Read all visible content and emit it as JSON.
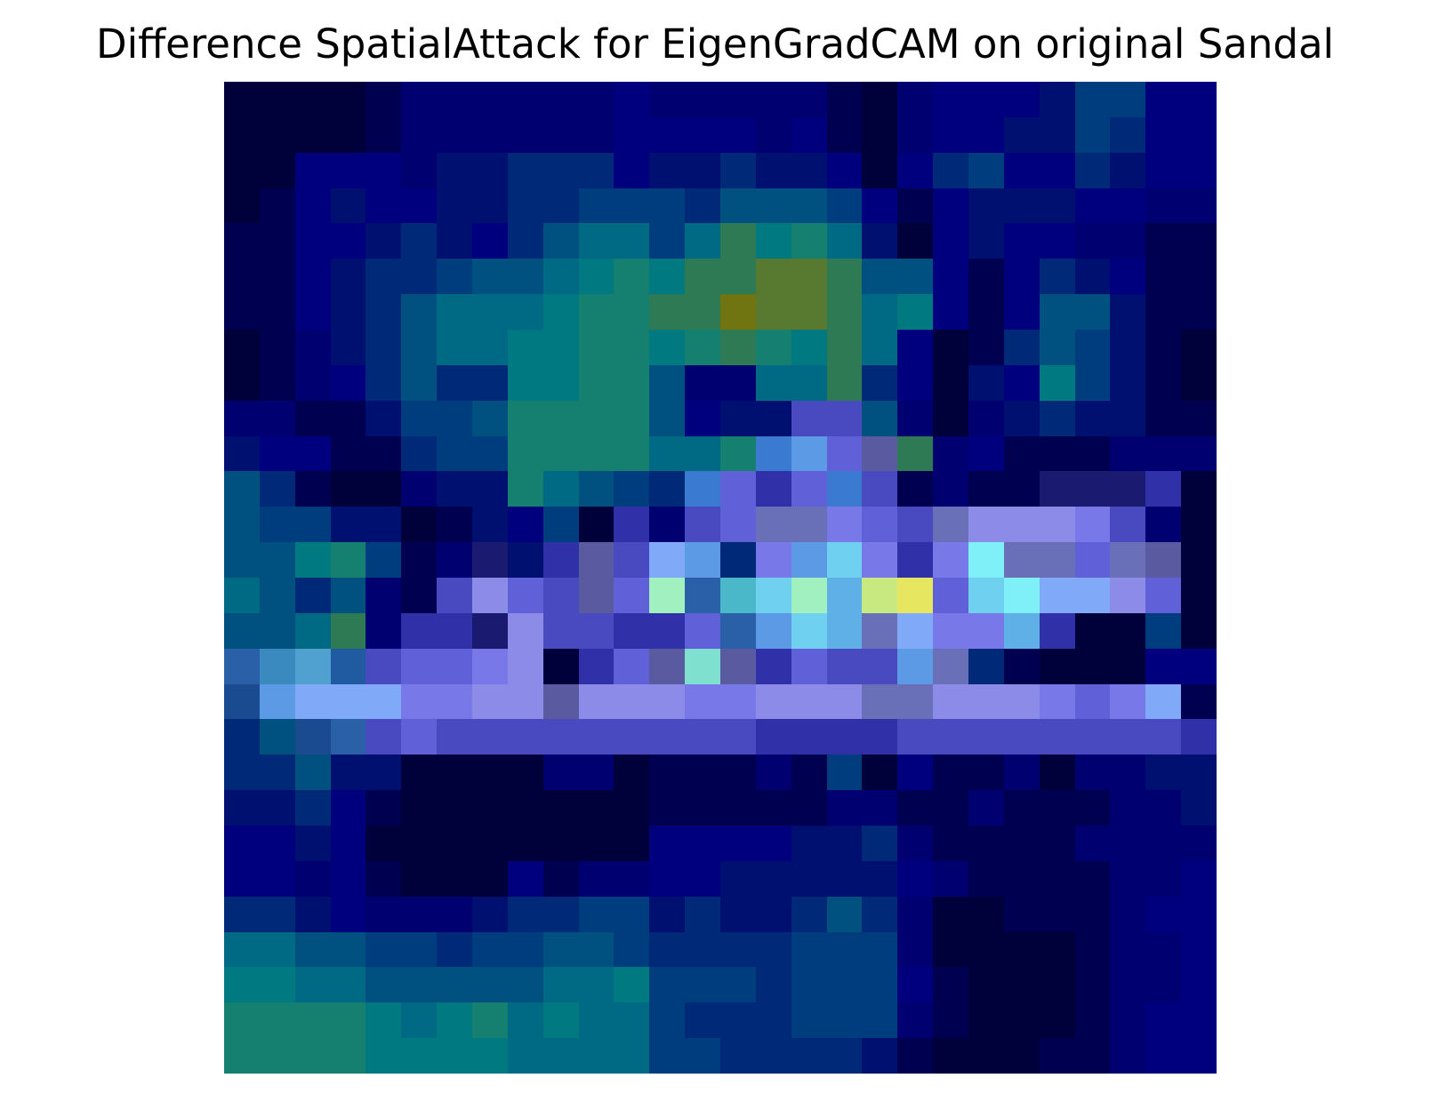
{
  "title": "Difference SpatialAttack for EigenGradCAM on original Sandal",
  "image": {
    "rows": 28,
    "cols": 28,
    "colormap": "jet-blend over dark-blue image",
    "palette": {
      "a": "#00003a",
      "b": "#000050",
      "c": "#000070",
      "d": "#00007e",
      "e": "#001070",
      "f": "#002a78",
      "g": "#003d7f",
      "h": "#005080",
      "i": "#006a85",
      "j": "#007a80",
      "k": "#158070",
      "l": "#2d7a55",
      "m": "#587a30",
      "n": "#707512",
      "o": "#1a1a70",
      "p": "#3030a8",
      "q": "#4a4ac0",
      "r": "#6060d8",
      "s": "#7878e8",
      "t": "#8c8ce8",
      "u": "#5a5aa0",
      "v": "#6a70b8",
      "w": "#3a7ad0",
      "x": "#5c9ae6",
      "y": "#80aaf8",
      "z": "#70d0f0",
      "A": "#80f0f8",
      "B": "#a0f0c0",
      "C": "#c8e880",
      "D": "#e6e660",
      "E": "#4ab8c8",
      "F": "#60b0e8",
      "G": "#2a60a8",
      "H": "#3a8abf",
      "I": "#50a0d0",
      "J": "#80e0d0",
      "K": "#205aa0",
      "L": "#1a4a90"
    },
    "grid": [
      "aaaabccccccdcccccbacdddeggdd",
      "aaaabccccccddddcdbacddeegfdd",
      "aadddceefffdeefeedadfgddfedd",
      "abdeddeeffgggfhhhgdbdeeeddcc",
      "bbddefedfhiigiljkieadeddccbb",
      "bbdeffghhijkjllmmlhhdbdfedbb",
      "bbdefhiiijkkllnmmlijdbdhhebb",
      "abcefhiijjkkjklkjlidabfhgeba",
      "abcdfhffjjkkhcciilfdaedjgeba",
      "ccbbegghkkkkhdeeqqhcacefeebb",
      "eddbbfggkkkkiikwxrulcdbbbccc",
      "hfbaaceekihgfwrprwqbcbbooopa",
      "hggeeabedgapcqrvvsrqvtttsqca",
      "hhjkgbcoepuqyxfsxzspsAvvrvua",
      "ihfhcbqtrqurBGEzBFCDrzAyytra",
      "hhilcppotqqpprGxzFvyssFpaaga",
      "GHIKqrrstapruJuprqqxvfbaaadd",
      "LxyyyssttutttsstttvvtttsrsyQ",
      "fhLGqrqqqqqqqqqppppqqqqqqqqp",
      "ffheeaaaaccabbbcbgadbbcaccee",
      "eefdbaaaaaaabbbbbccbbcbbbcce",
      "ddedaaaaaaaaddddeefcbbbbcccc",
      "ddcdbaaadbccddeeeeedcbbbbccd",
      "ffedccceffggefeefhfcaabbbcdd",
      "iihhggfgghhgffffgggcaaaabccd",
      "jjiihhhhhiijgggfgggdbaaabccd",
      "kkkkjijkijiigfffgggcbaaabcdd",
      "kkkkjjjjiiiiggffffebaaabbcdd"
    ]
  }
}
